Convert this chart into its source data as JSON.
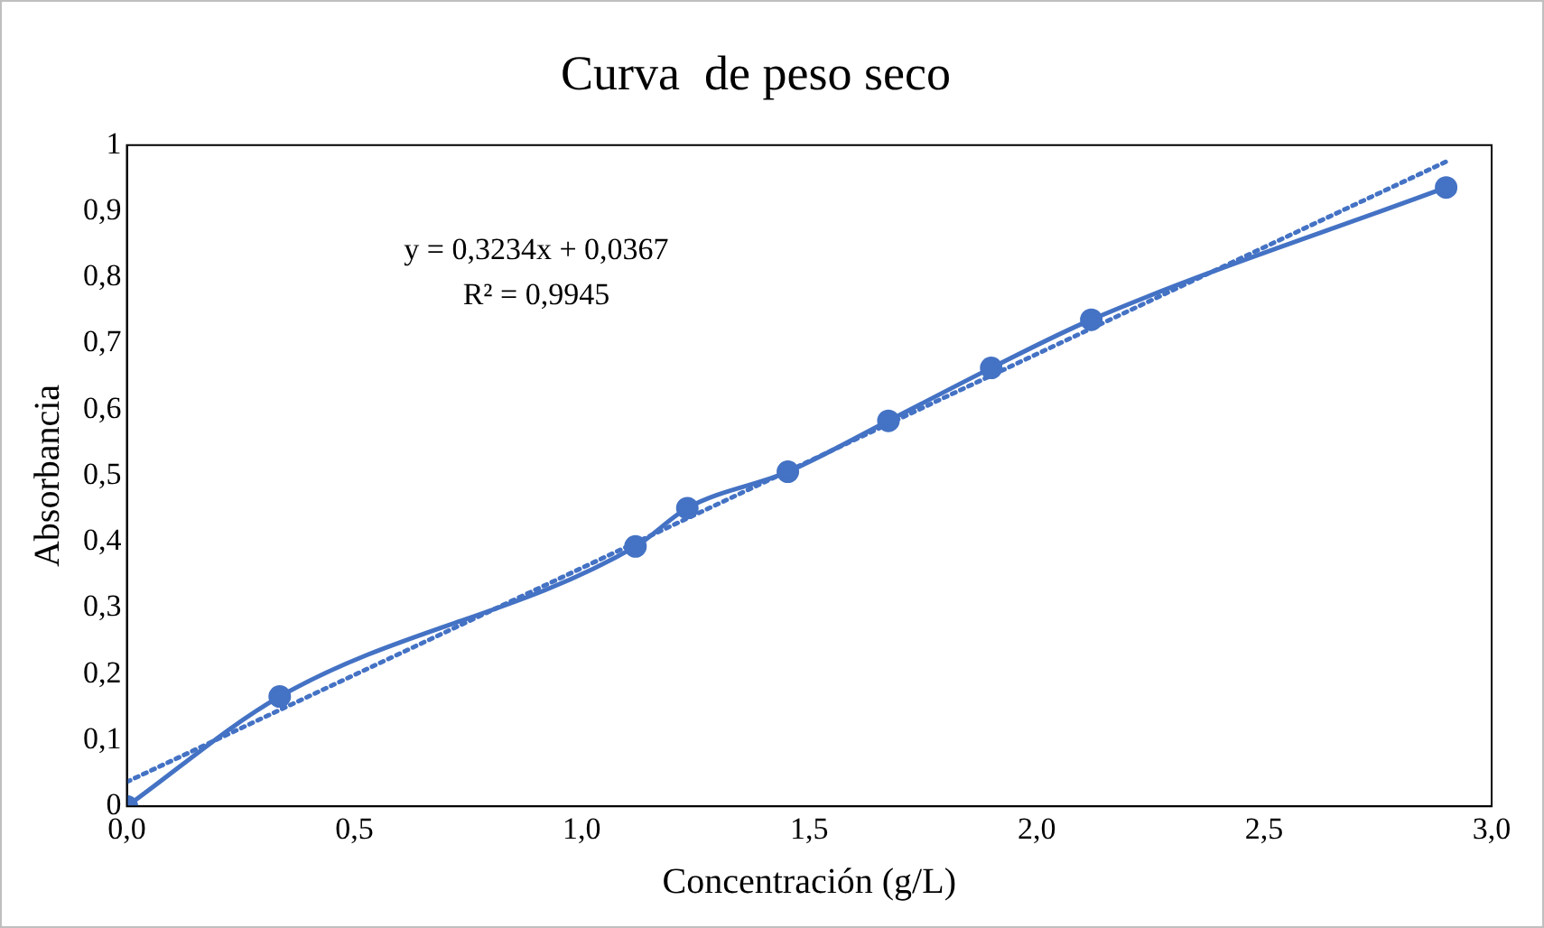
{
  "chart_data": {
    "type": "line",
    "title": "Curva  de peso seco",
    "xlabel": "Concentración (g/L)",
    "ylabel": "Absorbancia",
    "xlim": [
      0,
      3
    ],
    "xticks": [
      {
        "value": 0,
        "label": "0,0"
      },
      {
        "value": 0.5,
        "label": "0,5"
      },
      {
        "value": 1,
        "label": "1,0"
      },
      {
        "value": 1.5,
        "label": "1,5"
      },
      {
        "value": 2,
        "label": "2,0"
      },
      {
        "value": 2.5,
        "label": "2,5"
      },
      {
        "value": 3,
        "label": "3,0"
      }
    ],
    "ylim": [
      0,
      1
    ],
    "yticks": [
      0,
      {
        "value": 0.1,
        "label": "0,1"
      },
      {
        "value": 0.2,
        "label": "0,2"
      },
      {
        "value": 0.3,
        "label": "0,3"
      },
      {
        "value": 0.4,
        "label": "0,4"
      },
      {
        "value": 0.5,
        "label": "0,5"
      },
      {
        "value": 0.6,
        "label": "0,6"
      },
      {
        "value": 0.7,
        "label": "0,7"
      },
      {
        "value": 0.8,
        "label": "0,8"
      },
      {
        "value": 0.9,
        "label": "0,9"
      },
      1
    ],
    "grid": false,
    "legend": false,
    "series": [
      {
        "color": "#4472c4",
        "marker": "circle",
        "line_style": "solid",
        "x": [
          0,
          0.336,
          1.118,
          1.232,
          1.453,
          1.674,
          1.9,
          2.12,
          2.9
        ],
        "values": [
          0,
          0.166,
          0.393,
          0.451,
          0.506,
          0.583,
          0.663,
          0.736,
          0.936
        ]
      },
      {
        "color": "#4472c4",
        "marker": "none",
        "line_style": "dotted",
        "x": [
          0,
          2.9
        ],
        "values": [
          0.037,
          0.975
        ]
      }
    ],
    "annotations": [
      "y = 0,3234x + 0,0367",
      "R² = 0,9945"
    ]
  }
}
